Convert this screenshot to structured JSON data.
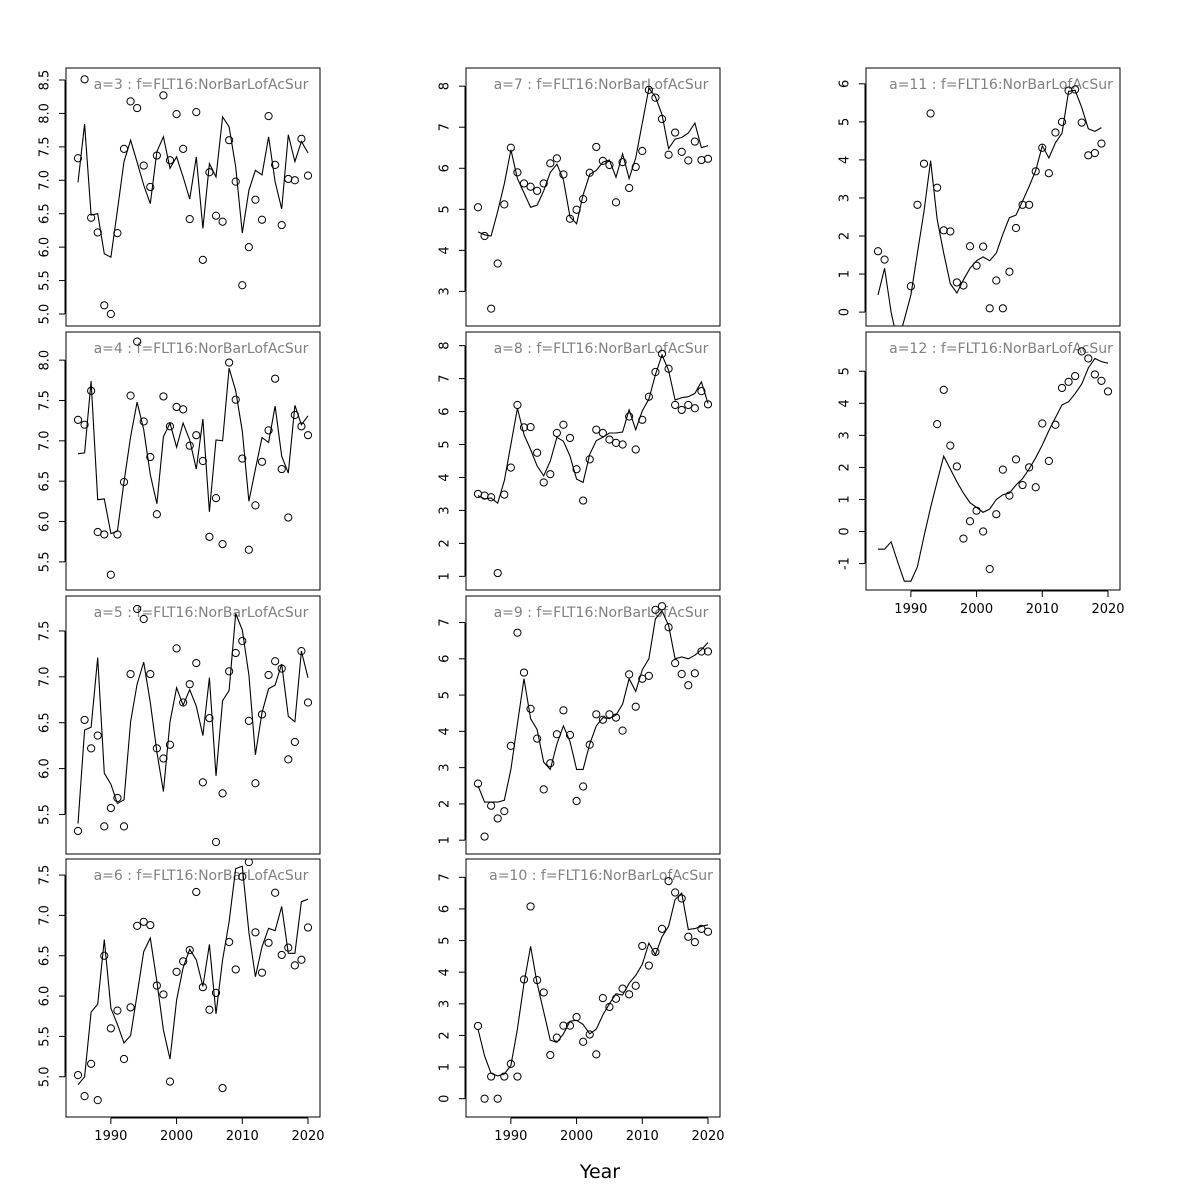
{
  "xlabel": "Year",
  "chart_data": [
    {
      "type": "scatter",
      "title": "a=3  :  f=FLT16:NorBarLofAcSur",
      "x_start": 1985,
      "xlim": [
        1985,
        2020
      ],
      "ylim": [
        5.0,
        8.5
      ],
      "yticks": [
        5.0,
        5.5,
        6.0,
        6.5,
        7.0,
        7.5,
        8.0,
        8.5
      ],
      "points": [
        7.33,
        8.51,
        6.44,
        6.22,
        5.13,
        5.0,
        6.21,
        7.47,
        8.18,
        8.08,
        7.22,
        6.9,
        7.37,
        8.27,
        7.3,
        7.99,
        7.47,
        6.42,
        8.02,
        5.81,
        7.12,
        6.47,
        6.38,
        7.6,
        6.98,
        5.43,
        6.0,
        6.71,
        6.41,
        7.96,
        7.23,
        6.33,
        7.02,
        7.0,
        7.62,
        7.07
      ],
      "fitted": [
        6.97,
        7.84,
        6.48,
        6.5,
        5.9,
        5.85,
        6.55,
        7.28,
        7.6,
        7.27,
        6.93,
        6.65,
        7.43,
        7.65,
        7.18,
        7.35,
        7.05,
        6.72,
        7.35,
        6.28,
        7.25,
        7.05,
        7.95,
        7.8,
        7.2,
        6.21,
        6.85,
        7.15,
        7.08,
        7.65,
        6.98,
        6.57,
        7.68,
        7.28,
        7.58,
        7.41
      ]
    },
    {
      "type": "scatter",
      "title": "a=4  :  f=FLT16:NorBarLofAcSur",
      "x_start": 1985,
      "xlim": [
        1985,
        2020
      ],
      "ylim": [
        5.3,
        8.2
      ],
      "yticks": [
        5.5,
        6.0,
        6.5,
        7.0,
        7.5,
        8.0
      ],
      "points": [
        7.26,
        7.2,
        7.62,
        5.87,
        5.84,
        5.34,
        5.84,
        6.49,
        7.56,
        8.23,
        7.24,
        6.8,
        6.09,
        7.55,
        7.18,
        7.42,
        7.39,
        6.94,
        7.07,
        6.75,
        5.81,
        6.29,
        5.72,
        7.97,
        7.51,
        6.78,
        5.65,
        6.2,
        6.74,
        7.13,
        7.77,
        6.65,
        6.05,
        7.32,
        7.18,
        7.07
      ],
      "fitted": [
        6.84,
        6.85,
        7.74,
        6.27,
        6.28,
        5.85,
        5.88,
        6.49,
        7.05,
        7.48,
        7.14,
        6.58,
        6.22,
        7.05,
        7.22,
        6.92,
        7.22,
        7.01,
        6.65,
        7.27,
        6.12,
        7.01,
        7.0,
        7.9,
        7.62,
        7.12,
        6.25,
        6.65,
        7.04,
        6.98,
        7.43,
        6.81,
        6.6,
        7.44,
        7.2,
        7.31
      ]
    },
    {
      "type": "scatter",
      "title": "a=5  :  f=FLT16:NorBarLofAcSur",
      "x_start": 1985,
      "xlim": [
        1985,
        2020
      ],
      "ylim": [
        5.2,
        7.75
      ],
      "yticks": [
        5.5,
        6.0,
        6.5,
        7.0,
        7.5
      ],
      "points": [
        5.32,
        6.53,
        6.22,
        6.36,
        5.37,
        5.57,
        5.68,
        5.37,
        7.03,
        7.74,
        7.63,
        7.03,
        6.22,
        6.11,
        6.26,
        7.31,
        6.72,
        6.92,
        7.15,
        5.85,
        6.55,
        5.2,
        5.73,
        7.06,
        7.26,
        7.39,
        6.52,
        5.84,
        6.59,
        7.02,
        7.17,
        7.09,
        6.1,
        6.29,
        7.28,
        6.72
      ],
      "fitted": [
        5.4,
        6.42,
        6.45,
        7.21,
        5.95,
        5.83,
        5.62,
        5.66,
        6.51,
        6.92,
        7.16,
        6.72,
        6.18,
        5.75,
        6.51,
        6.88,
        6.69,
        6.86,
        6.68,
        6.36,
        6.99,
        5.92,
        6.74,
        6.85,
        7.69,
        7.51,
        7.02,
        6.15,
        6.61,
        6.87,
        6.91,
        7.14,
        6.57,
        6.51,
        7.28,
        6.99
      ]
    },
    {
      "type": "scatter",
      "title": "a=6  :  f=FLT16:NorBarLofAcSur",
      "x_start": 1985,
      "xlim": [
        1985,
        2020
      ],
      "ylim": [
        4.65,
        7.55
      ],
      "yticks": [
        5.0,
        5.5,
        6.0,
        6.5,
        7.0,
        7.5
      ],
      "points": [
        5.02,
        4.76,
        5.16,
        4.71,
        6.5,
        5.6,
        5.82,
        5.22,
        5.86,
        6.87,
        6.92,
        6.88,
        6.13,
        6.02,
        4.94,
        6.3,
        6.43,
        6.57,
        7.29,
        6.11,
        5.83,
        6.04,
        4.86,
        6.67,
        6.33,
        7.48,
        7.66,
        6.79,
        6.29,
        6.66,
        7.28,
        6.51,
        6.6,
        6.38,
        6.45,
        6.85
      ],
      "fitted": [
        4.9,
        5.0,
        5.8,
        5.9,
        6.7,
        5.85,
        5.65,
        5.42,
        5.51,
        6.02,
        6.55,
        6.72,
        6.18,
        5.58,
        5.22,
        5.95,
        6.35,
        6.58,
        6.45,
        6.12,
        6.64,
        5.78,
        6.45,
        6.92,
        7.58,
        7.61,
        6.79,
        6.24,
        6.61,
        6.84,
        6.81,
        7.11,
        6.53,
        6.53,
        7.17,
        7.2
      ]
    },
    {
      "type": "scatter",
      "title": "a=7  :  f=FLT16:NorBarLofAcSur",
      "x_start": 1985,
      "xlim": [
        1985,
        2020
      ],
      "ylim": [
        2.45,
        8.15
      ],
      "yticks": [
        3,
        4,
        5,
        6,
        7,
        8
      ],
      "points": [
        5.05,
        4.35,
        2.58,
        3.68,
        5.12,
        6.5,
        5.9,
        5.63,
        5.55,
        5.45,
        5.63,
        6.12,
        6.24,
        5.85,
        4.77,
        4.99,
        5.25,
        5.89,
        6.52,
        6.18,
        6.08,
        5.17,
        6.15,
        5.52,
        6.03,
        6.42,
        7.91,
        7.72,
        7.2,
        6.33,
        6.87,
        6.4,
        6.19,
        6.65,
        6.2,
        6.23
      ],
      "fitted": [
        4.45,
        4.38,
        4.35,
        4.95,
        5.62,
        6.45,
        5.75,
        5.4,
        5.05,
        5.1,
        5.45,
        5.9,
        6.1,
        5.72,
        4.82,
        4.65,
        5.35,
        5.85,
        5.95,
        6.15,
        6.2,
        5.78,
        6.35,
        5.75,
        6.25,
        7.1,
        7.95,
        7.74,
        7.31,
        6.48,
        6.71,
        6.75,
        6.86,
        7.1,
        6.5,
        6.55
      ]
    },
    {
      "type": "scatter",
      "title": "a=8  :  f=FLT16:NorBarLofAcSur",
      "x_start": 1985,
      "xlim": [
        1985,
        2020
      ],
      "ylim": [
        0.95,
        8.05
      ],
      "yticks": [
        1,
        2,
        3,
        4,
        5,
        6,
        7,
        8
      ],
      "points": [
        3.5,
        3.45,
        3.4,
        1.1,
        3.48,
        4.3,
        6.2,
        5.52,
        5.53,
        4.75,
        3.85,
        4.1,
        5.35,
        5.6,
        5.2,
        4.25,
        3.3,
        4.55,
        5.45,
        5.35,
        5.15,
        5.05,
        5.0,
        5.85,
        4.85,
        5.75,
        6.45,
        7.2,
        7.75,
        7.3,
        6.2,
        6.05,
        6.2,
        6.1,
        6.62,
        6.22
      ],
      "fitted": [
        3.45,
        3.35,
        3.38,
        3.22,
        3.9,
        5.0,
        6.1,
        5.3,
        4.85,
        4.35,
        4.05,
        4.5,
        5.22,
        5.1,
        4.65,
        3.95,
        3.85,
        4.7,
        5.12,
        5.22,
        5.35,
        5.35,
        5.38,
        6.05,
        5.45,
        6.02,
        6.38,
        7.12,
        7.72,
        7.25,
        6.35,
        6.42,
        6.45,
        6.55,
        6.9,
        6.25
      ]
    },
    {
      "type": "scatter",
      "title": "a=9  :  f=FLT16:NorBarLofAcSur",
      "x_start": 1985,
      "xlim": [
        1985,
        2020
      ],
      "ylim": [
        0.95,
        7.4
      ],
      "yticks": [
        1,
        2,
        3,
        4,
        5,
        6,
        7
      ],
      "points": [
        2.56,
        1.1,
        1.95,
        1.6,
        1.8,
        3.6,
        6.72,
        5.62,
        4.62,
        3.8,
        2.4,
        3.12,
        3.92,
        4.58,
        3.9,
        2.08,
        2.48,
        3.63,
        4.47,
        4.32,
        4.47,
        4.38,
        4.02,
        5.57,
        4.68,
        5.45,
        5.53,
        7.35,
        7.45,
        6.87,
        5.88,
        5.58,
        5.27,
        5.6,
        6.2,
        6.2
      ],
      "fitted": [
        2.5,
        2.05,
        2.05,
        2.05,
        2.1,
        2.95,
        4.2,
        5.45,
        4.35,
        4.05,
        3.15,
        2.95,
        3.65,
        4.15,
        3.72,
        2.95,
        2.95,
        3.65,
        4.15,
        4.38,
        4.35,
        4.45,
        4.75,
        5.45,
        5.1,
        5.7,
        6.0,
        7.1,
        7.32,
        6.92,
        6.0,
        6.05,
        6.0,
        6.1,
        6.25,
        6.45
      ]
    },
    {
      "type": "scatter",
      "title": "a=10  :  f=FLT16:NorBarLofAcSur",
      "x_start": 1985,
      "xlim": [
        1985,
        2020
      ],
      "ylim": [
        -0.2,
        7.2
      ],
      "yticks": [
        0,
        1,
        2,
        3,
        4,
        5,
        6,
        7
      ],
      "points": [
        2.3,
        0.0,
        0.7,
        0.0,
        0.7,
        1.1,
        0.7,
        3.77,
        6.08,
        3.75,
        3.36,
        1.38,
        1.93,
        2.31,
        2.31,
        2.58,
        1.8,
        2.03,
        1.4,
        3.18,
        2.9,
        3.16,
        3.48,
        3.3,
        3.57,
        4.83,
        4.21,
        4.64,
        5.37,
        6.88,
        6.52,
        6.33,
        5.12,
        4.95,
        5.37,
        5.28
      ],
      "fitted": [
        2.2,
        1.35,
        0.8,
        0.72,
        0.78,
        1.05,
        2.2,
        3.65,
        4.82,
        3.65,
        2.75,
        1.85,
        1.78,
        2.05,
        2.45,
        2.48,
        2.35,
        2.05,
        2.2,
        2.65,
        3.0,
        3.32,
        3.28,
        3.65,
        3.9,
        4.25,
        4.92,
        4.55,
        5.12,
        5.45,
        6.3,
        6.5,
        5.35,
        5.38,
        5.45,
        5.5
      ]
    },
    {
      "type": "scatter",
      "title": "a=11  :  f=FLT16:NorBarLofAcSur",
      "x_start": 1985,
      "xlim": [
        1985,
        2020
      ],
      "ylim": [
        -0.05,
        6.1
      ],
      "yticks": [
        0,
        1,
        2,
        3,
        4,
        5,
        6
      ],
      "points": [
        1.6,
        1.38,
        null,
        null,
        null,
        0.68,
        2.82,
        3.9,
        5.22,
        3.27,
        2.15,
        2.12,
        0.78,
        0.7,
        1.73,
        1.22,
        1.72,
        0.1,
        0.83,
        0.1,
        1.06,
        2.21,
        2.82,
        2.82,
        3.7,
        4.32,
        3.65,
        4.72,
        5.0,
        5.82,
        5.85,
        4.98,
        4.12,
        4.18,
        4.43
      ],
      "fitted": [
        0.45,
        1.15,
        0.0,
        -0.8,
        -0.2,
        0.45,
        1.55,
        2.65,
        3.98,
        2.45,
        1.55,
        0.75,
        0.5,
        0.85,
        1.15,
        1.35,
        1.45,
        1.35,
        1.55,
        2.05,
        2.48,
        2.55,
        2.92,
        3.3,
        3.72,
        4.37,
        4.05,
        4.45,
        4.7,
        5.8,
        5.83,
        5.38,
        4.82,
        4.75,
        4.85
      ]
    },
    {
      "type": "scatter",
      "title": "a=12  :  f=FLT16:NorBarLofAcSur",
      "x_start": 1985,
      "xlim": [
        1985,
        2020
      ],
      "ylim": [
        -1.45,
        5.85
      ],
      "yticks": [
        -1,
        0,
        1,
        2,
        3,
        4,
        5
      ],
      "points": [
        null,
        null,
        null,
        null,
        null,
        null,
        null,
        null,
        null,
        3.35,
        4.42,
        2.68,
        2.03,
        -0.22,
        0.32,
        0.65,
        0.0,
        -1.17,
        0.54,
        1.93,
        1.12,
        2.25,
        1.45,
        2.0,
        1.38,
        3.37,
        2.2,
        3.33,
        4.48,
        4.67,
        4.85,
        5.62,
        5.4,
        4.9,
        4.7,
        4.37
      ],
      "fitted": [
        -0.55,
        -0.55,
        -0.32,
        -0.95,
        -1.55,
        -1.55,
        -1.1,
        -0.15,
        0.75,
        1.55,
        2.35,
        1.95,
        1.55,
        1.2,
        0.9,
        0.75,
        0.6,
        0.7,
        1.0,
        1.15,
        1.2,
        1.45,
        1.65,
        1.95,
        2.3,
        2.7,
        3.15,
        3.55,
        3.95,
        4.05,
        4.3,
        4.6,
        5.1,
        5.4,
        5.3,
        5.25
      ]
    }
  ],
  "xticks": [
    1990,
    2000,
    2010,
    2020
  ]
}
